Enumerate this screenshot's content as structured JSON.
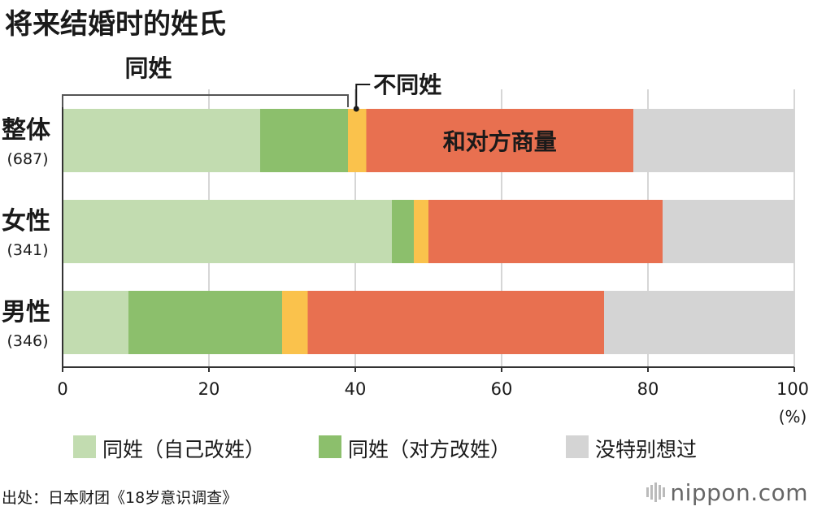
{
  "title": "将来结婚时的姓氏",
  "source": "出处：日本财团《18岁意识调查》",
  "brand": "nippon.com",
  "colors": {
    "own_surname_changed": "#c2dcb0",
    "partner_surname_changed": "#8cbf6c",
    "different_surnames": "#fac24c",
    "discuss_with_partner": "#e87050",
    "not_thought": "#d4d4d4",
    "grid": "#c8c8c8",
    "bracket": "#555555"
  },
  "annotations": {
    "same_surname": "同姓",
    "different_surname": "不同姓",
    "discuss": "和对方商量"
  },
  "legend": [
    {
      "label": "同姓（自己改姓）",
      "color_key": "own_surname_changed"
    },
    {
      "label": "同姓（对方改姓）",
      "color_key": "partner_surname_changed"
    },
    {
      "label": "没特别想过",
      "color_key": "not_thought"
    }
  ],
  "chart_data": {
    "type": "bar",
    "orientation": "horizontal",
    "stacked": true,
    "title": "将来结婚时的姓氏",
    "xlim": [
      0,
      100
    ],
    "xticks": [
      0,
      20,
      40,
      60,
      80,
      100
    ],
    "xunit": "(%)",
    "grid": true,
    "categories": [
      {
        "label": "整体",
        "n": "(687)"
      },
      {
        "label": "女性",
        "n": "(341)"
      },
      {
        "label": "男性",
        "n": "(346)"
      }
    ],
    "series": [
      {
        "name": "同姓（自己改姓）",
        "color_key": "own_surname_changed",
        "values": [
          27,
          45,
          9
        ]
      },
      {
        "name": "同姓（对方改姓）",
        "color_key": "partner_surname_changed",
        "values": [
          12,
          3,
          21
        ]
      },
      {
        "name": "不同姓",
        "color_key": "different_surnames",
        "values": [
          2.5,
          2,
          3.5
        ]
      },
      {
        "name": "和对方商量",
        "color_key": "discuss_with_partner",
        "values": [
          36.5,
          32,
          40.5
        ]
      },
      {
        "name": "没特别想过",
        "color_key": "not_thought",
        "values": [
          22,
          18,
          26
        ]
      }
    ]
  }
}
